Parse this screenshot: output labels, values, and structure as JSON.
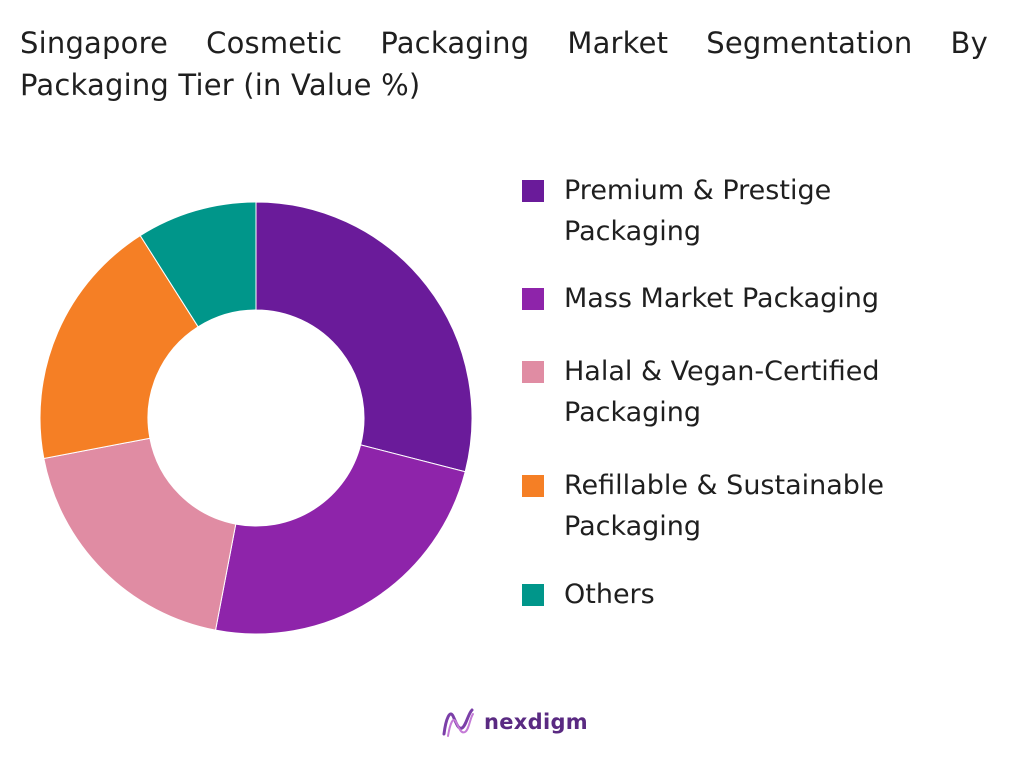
{
  "chart_data": {
    "type": "pie",
    "donut": true,
    "title": "Singapore Cosmetic Packaging Market Segmentation By Packaging Tier (in Value %)",
    "categories": [
      "Premium & Prestige Packaging",
      "Mass Market Packaging",
      "Halal & Vegan-Certified Packaging",
      "Refillable & Sustainable Packaging",
      "Others"
    ],
    "values": [
      29,
      24,
      19,
      19,
      9
    ],
    "colors": [
      "#6a1b9a",
      "#8e24aa",
      "#e08ca3",
      "#f57f25",
      "#00968a"
    ],
    "legend_position": "right"
  },
  "branding": {
    "logo_text": "nexdigm"
  }
}
